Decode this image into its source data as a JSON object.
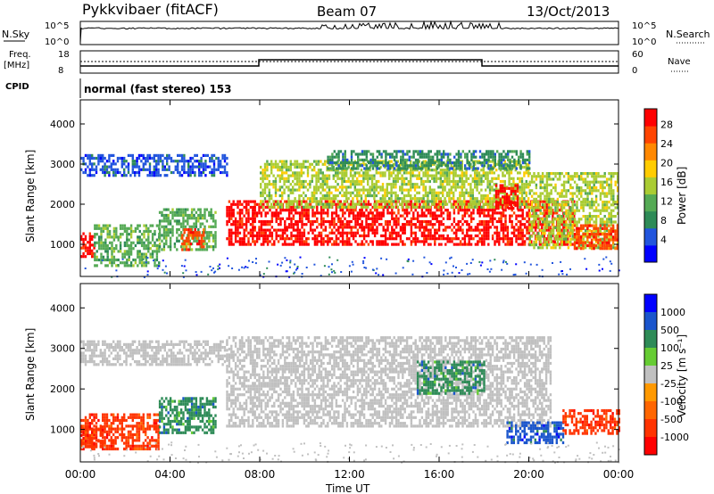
{
  "header": {
    "title": "Pykkvibaer (fitACF)",
    "beam": "Beam 07",
    "date": "13/Oct/2013"
  },
  "params": {
    "nsky_label": "N.Sky",
    "nsky_ticks": [
      "10^5",
      "10^0"
    ],
    "nsearch_label": "N.Search",
    "nsearch_ticks": [
      "10^5",
      "10^0"
    ],
    "freq_label": "Freq.",
    "freq_unit": "[MHz]",
    "freq_ticks": [
      "18",
      "8"
    ],
    "nave_label": "Nave",
    "nave_ticks": [
      "60",
      "0"
    ],
    "cpid_label": "CPID",
    "cpid_text": "normal (fast stereo) 153"
  },
  "colors": {
    "power_scale": [
      "#0000ff",
      "#2255dd",
      "#2e8b57",
      "#55aa55",
      "#aacc33",
      "#ffcc00",
      "#ff8800",
      "#ff4400",
      "#ff0000"
    ],
    "velocity_scale": [
      "#0000ff",
      "#1a55cc",
      "#2e8b57",
      "#66cc33",
      "#c0c0c0",
      "#ff9900",
      "#ff6600",
      "#ff3300",
      "#ff0000"
    ],
    "ground_scatter": "#c0c0c0"
  },
  "chart_data": [
    {
      "type": "heatmap",
      "name_key": "power",
      "ylabel": "Slant Range [km]",
      "yticks": [
        1000,
        2000,
        3000,
        4000
      ],
      "ylim": [
        200,
        4600
      ],
      "xlim_hours": [
        0,
        24
      ],
      "colorbar_label": "Power [dB]",
      "colorbar_ticks": [
        "4",
        "8",
        "12",
        "16",
        "20",
        "24",
        "28"
      ],
      "colorbar_range": [
        0,
        30
      ],
      "regions": [
        {
          "t0": 0.0,
          "t1": 6.5,
          "r0": 2700,
          "r1": 3250,
          "value": 6
        },
        {
          "t0": 0.0,
          "t1": 0.6,
          "r0": 700,
          "r1": 1300,
          "value": 27
        },
        {
          "t0": 0.6,
          "t1": 3.5,
          "r0": 500,
          "r1": 1500,
          "value": 10
        },
        {
          "t0": 3.5,
          "t1": 6.0,
          "r0": 900,
          "r1": 1900,
          "value": 13
        },
        {
          "t0": 4.5,
          "t1": 5.5,
          "r0": 900,
          "r1": 1400,
          "value": 25
        },
        {
          "t0": 6.5,
          "t1": 22.0,
          "r0": 1000,
          "r1": 2100,
          "value": 27
        },
        {
          "t0": 8.0,
          "t1": 20.0,
          "r0": 1900,
          "r1": 3100,
          "value": 16
        },
        {
          "t0": 11.0,
          "t1": 20.0,
          "r0": 2900,
          "r1": 3350,
          "value": 9
        },
        {
          "t0": 18.5,
          "t1": 19.5,
          "r0": 1900,
          "r1": 2500,
          "value": 28
        },
        {
          "t0": 20.0,
          "t1": 24.0,
          "r0": 900,
          "r1": 2800,
          "value": 15
        },
        {
          "t0": 22.0,
          "t1": 24.0,
          "r0": 900,
          "r1": 1500,
          "value": 26
        }
      ]
    },
    {
      "type": "heatmap",
      "name_key": "velocity",
      "ylabel": "Slant Range [km]",
      "yticks": [
        1000,
        2000,
        3000,
        4000
      ],
      "ylim": [
        200,
        4600
      ],
      "xlim_hours": [
        0,
        24
      ],
      "xticks": [
        "00:00",
        "04:00",
        "08:00",
        "12:00",
        "16:00",
        "20:00",
        "00:00"
      ],
      "xlabel": "Time UT",
      "colorbar_label": "Velocity [m s⁻¹]",
      "colorbar_ticks": [
        "1000",
        "500",
        "100",
        "25",
        "-25",
        "-100",
        "-500",
        "-1000"
      ],
      "regions": [
        {
          "t0": 0.0,
          "t1": 6.5,
          "r0": 2600,
          "r1": 3200,
          "value": "gs"
        },
        {
          "t0": 0.0,
          "t1": 3.5,
          "r0": 500,
          "r1": 1400,
          "value": "-300"
        },
        {
          "t0": 3.5,
          "t1": 6.0,
          "r0": 900,
          "r1": 1800,
          "value": "150"
        },
        {
          "t0": 6.5,
          "t1": 21.0,
          "r0": 1100,
          "r1": 3300,
          "value": "gs"
        },
        {
          "t0": 15.0,
          "t1": 18.0,
          "r0": 1900,
          "r1": 2700,
          "value": "300"
        },
        {
          "t0": 19.0,
          "t1": 21.5,
          "r0": 700,
          "r1": 1200,
          "value": "600"
        },
        {
          "t0": 21.5,
          "t1": 24.0,
          "r0": 900,
          "r1": 1500,
          "value": "-400"
        },
        {
          "t0": 0.0,
          "t1": 1.0,
          "r0": 600,
          "r1": 1100,
          "value": "-700"
        }
      ]
    }
  ]
}
